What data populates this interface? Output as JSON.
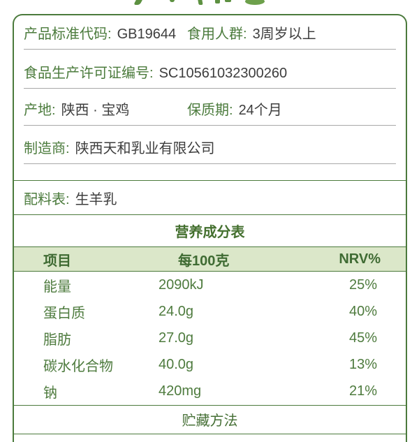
{
  "colors": {
    "accent_green_border": "#4b7a3c",
    "label_green": "#4b7b3c",
    "value_dark": "#3d3d3d",
    "table_text_green": "#4e7b3e",
    "header_bg_light_green": "#dbe7c9",
    "divider_gray": "#a8a8a8",
    "decor_stroke_green": "#5d9141"
  },
  "decor": {
    "description": "cut-off-green-heading-strokes"
  },
  "panel": {
    "info_rows": [
      {
        "fields": [
          {
            "label": "产品标准代码:",
            "value": "GB19644"
          },
          {
            "label": "食用人群:",
            "value": "3周岁以上"
          }
        ]
      },
      {
        "fields": [
          {
            "label": "食品生产许可证编号:",
            "value": "SC10561032300260"
          }
        ]
      },
      {
        "fields": [
          {
            "label": "产地:",
            "value": "陕西 · 宝鸡"
          },
          {
            "label": "保质期:",
            "value": "24个月"
          }
        ]
      },
      {
        "fields": [
          {
            "label": "制造商:",
            "value": "陕西天和乳业有限公司"
          }
        ]
      }
    ],
    "ingredients": {
      "label": "配料表:",
      "value": "生羊乳"
    },
    "nutrition": {
      "title": "营养成分表",
      "columns": [
        "项目",
        "每100克",
        "NRV%"
      ],
      "rows": [
        [
          "能量",
          "2090kJ",
          "25%"
        ],
        [
          "蛋白质",
          "24.0g",
          "40%"
        ],
        [
          "脂肪",
          "27.0g",
          "45%"
        ],
        [
          "碳水化合物",
          "40.0g",
          "13%"
        ],
        [
          "钠",
          "420mg",
          "21%"
        ]
      ]
    },
    "storage_title": "贮藏方法"
  }
}
